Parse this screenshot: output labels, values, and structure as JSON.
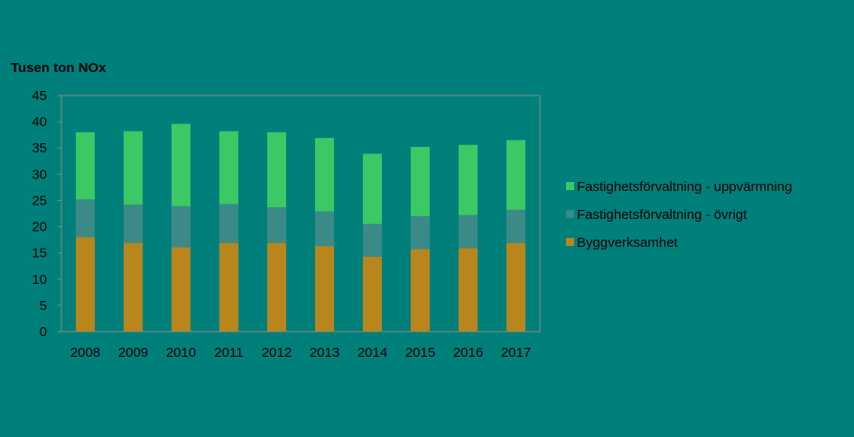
{
  "chart_data": {
    "type": "bar",
    "stacked": true,
    "ylabel": "Tusen ton NOx",
    "xlabel": "",
    "ylim": [
      0,
      45
    ],
    "yticks": [
      0,
      5,
      10,
      15,
      20,
      25,
      30,
      35,
      40,
      45
    ],
    "categories": [
      "2008",
      "2009",
      "2010",
      "2011",
      "2012",
      "2013",
      "2014",
      "2015",
      "2016",
      "2017"
    ],
    "series": [
      {
        "name": "Byggverksamhet",
        "color": "#b8861c",
        "values": [
          18.0,
          16.9,
          16.1,
          16.9,
          16.9,
          16.3,
          14.3,
          15.7,
          15.9,
          16.9
        ]
      },
      {
        "name": "Fastighetsförvaltning - övrigt",
        "color": "#3b8a88",
        "values": [
          7.2,
          7.3,
          7.8,
          7.4,
          6.8,
          6.6,
          6.2,
          6.3,
          6.3,
          6.3
        ]
      },
      {
        "name": "Fastighetsförvaltning - uppvärmning",
        "color": "#3cc864",
        "values": [
          12.8,
          14.0,
          15.7,
          13.9,
          14.3,
          14.0,
          13.4,
          13.2,
          13.4,
          13.3
        ]
      }
    ],
    "legend_order": [
      2,
      1,
      0
    ],
    "legend_position": "right",
    "grid": false,
    "plot_background": "#007f7b",
    "plot_border_color": "#8a8a8a"
  }
}
